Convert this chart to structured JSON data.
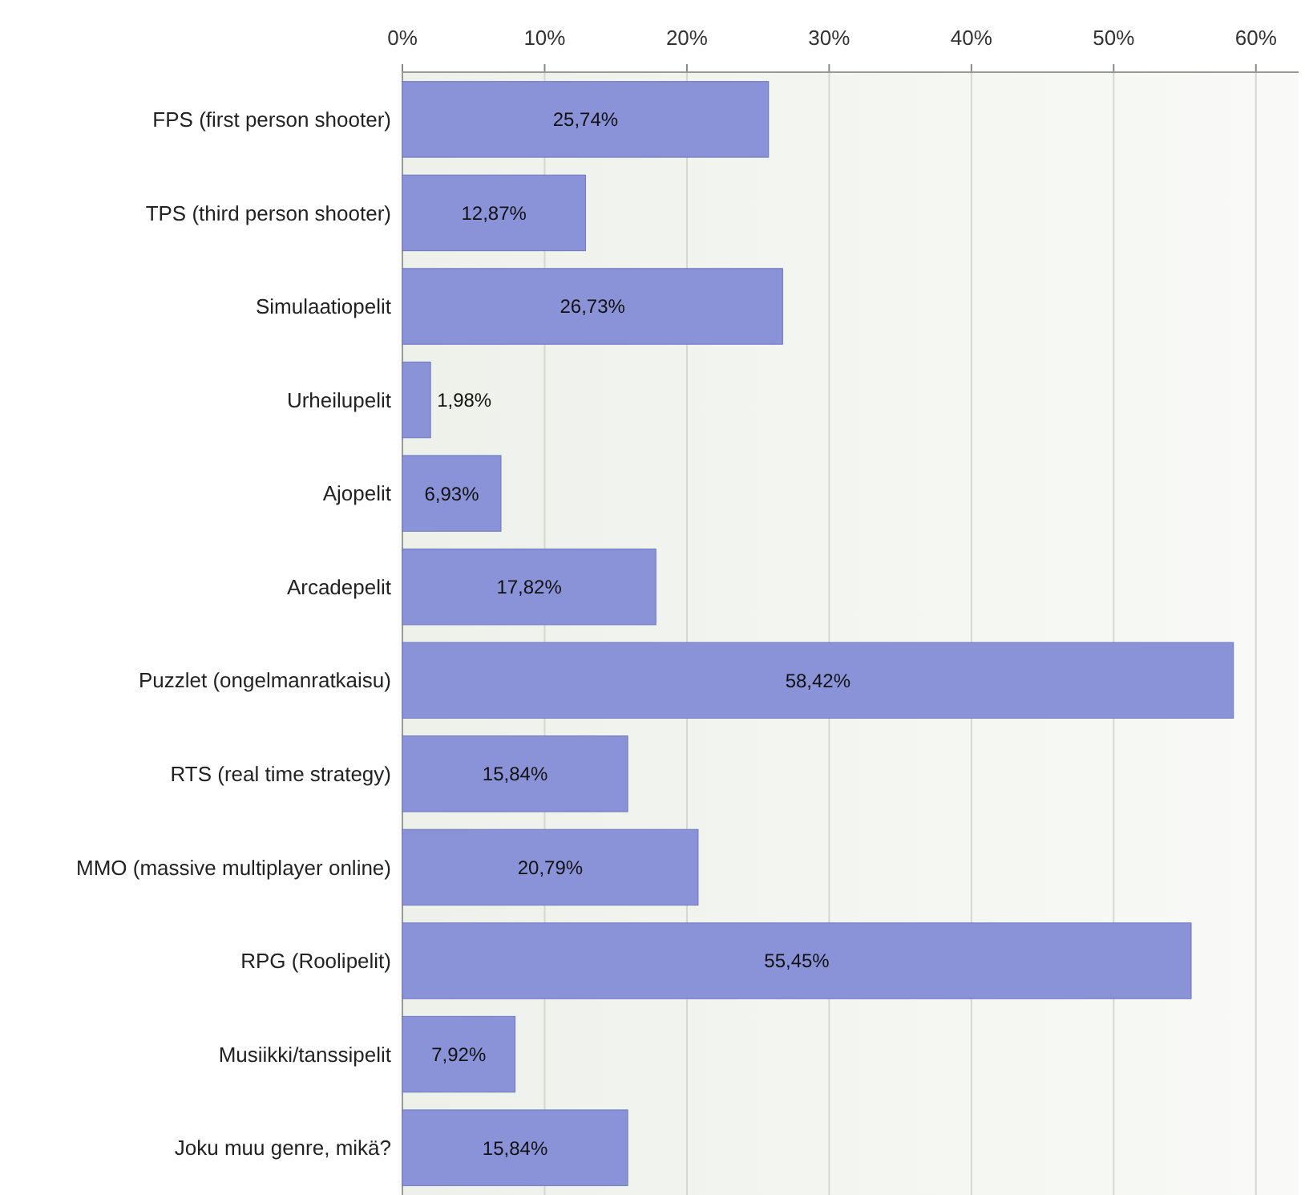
{
  "chart_data": {
    "type": "bar",
    "orientation": "horizontal",
    "categories": [
      "FPS (first person shooter)",
      "TPS (third person shooter)",
      "Simulaatiopelit",
      "Urheilupelit",
      "Ajopelit",
      "Arcadepelit",
      "Puzzlet (ongelmanratkaisu)",
      "RTS (real time strategy)",
      "MMO (massive multiplayer online)",
      "RPG (Roolipelit)",
      "Musiikki/tanssipelit",
      "Joku muu genre, mikä?"
    ],
    "values": [
      25.74,
      12.87,
      26.73,
      1.98,
      6.93,
      17.82,
      58.42,
      15.84,
      20.79,
      55.45,
      7.92,
      15.84
    ],
    "value_labels": [
      "25,74%",
      "12,87%",
      "26,73%",
      "1,98%",
      "6,93%",
      "17,82%",
      "58,42%",
      "15,84%",
      "20,79%",
      "55,45%",
      "7,92%",
      "15,84%"
    ],
    "color": "#8a93d8",
    "xlim": [
      0,
      63
    ],
    "xticks": [
      {
        "value": 0,
        "label": "0%"
      },
      {
        "value": 10,
        "label": "10%"
      },
      {
        "value": 20,
        "label": "20%"
      },
      {
        "value": 30,
        "label": "30%"
      },
      {
        "value": 40,
        "label": "40%"
      },
      {
        "value": 50,
        "label": "50%"
      },
      {
        "value": 60,
        "label": "60%"
      }
    ],
    "grid": "x"
  }
}
